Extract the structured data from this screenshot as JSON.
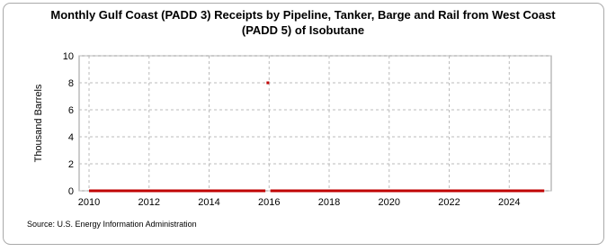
{
  "chart_data": {
    "type": "line",
    "title": "Monthly Gulf Coast (PADD 3) Receipts by Pipeline, Tanker, Barge and Rail from West Coast",
    "subtitle": "(PADD 5) of Isobutane",
    "y_label": "Thousand Barrels",
    "source": "Source: U.S. Energy Information Administration",
    "x": [
      2010.0,
      2015.875,
      2015.917,
      2015.958,
      2016.0,
      2016.042,
      2025.167
    ],
    "series": [
      {
        "name": "Isobutane",
        "color": "#c00000",
        "values": [
          0,
          0,
          null,
          8,
          null,
          0,
          0
        ]
      }
    ],
    "xlim": [
      2009.67,
      2025.4
    ],
    "xticks": [
      2010,
      2012,
      2014,
      2016,
      2018,
      2020,
      2022,
      2024
    ],
    "ylim": [
      0,
      10
    ],
    "yticks": [
      0,
      2,
      4,
      6,
      8,
      10
    ],
    "grid": true
  }
}
